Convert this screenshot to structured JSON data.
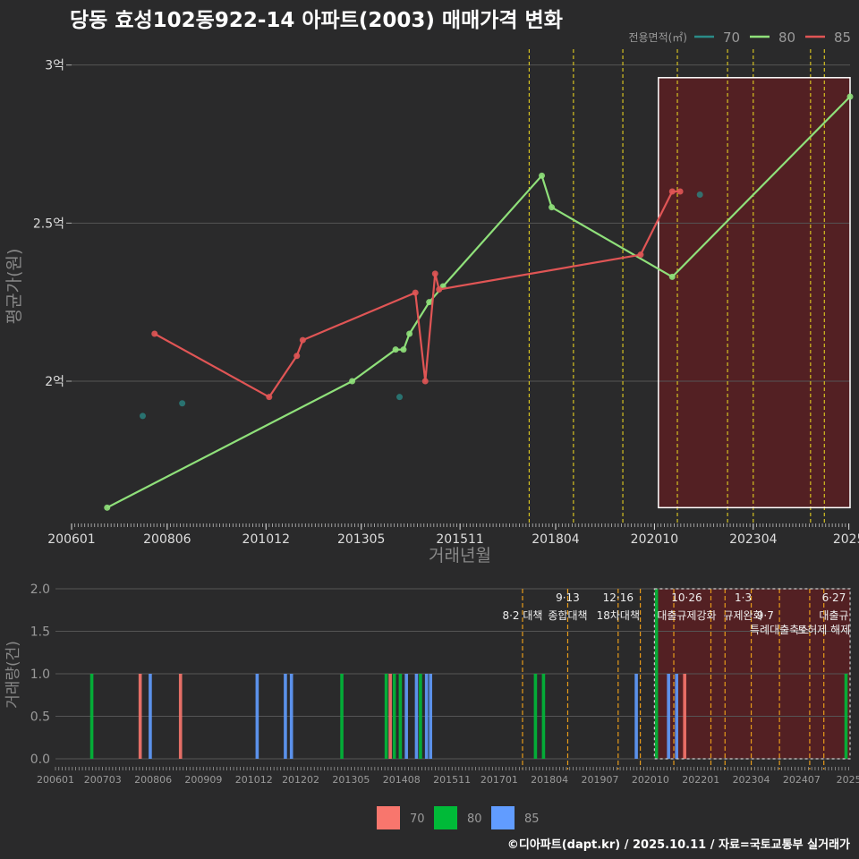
{
  "title": "당동 효성102동922-14 아파트(2003) 매매가격 변화",
  "footer": "©디아파트(dapt.kr) / 2025.10.11 / 자료=국토교통부 실거래가",
  "colors": {
    "s70": "#2a8b88",
    "s80": "#8fe07a",
    "s85": "#e05555",
    "b70": "#f8766d",
    "b80": "#00ba38",
    "b85": "#619cff",
    "grid": "#555555",
    "policy_top": "#d4c021",
    "policy_bot": "#e69a1a",
    "shade": "#5a1f22",
    "box": "#ffffff"
  },
  "chart_data": [
    {
      "type": "line",
      "title": "당동 효성102동922-14 아파트(2003) 매매가격 변화",
      "xlabel": "거래년월",
      "ylabel": "평균가(원)",
      "xlim": [
        2006.0,
        2025.7
      ],
      "ylim": [
        1.55,
        3.05
      ],
      "yticks": [
        {
          "v": 2.0,
          "label": "2억"
        },
        {
          "v": 2.5,
          "label": "2.5억"
        },
        {
          "v": 3.0,
          "label": "3억"
        }
      ],
      "xticks": [
        {
          "v": 2006.0,
          "label": "200601"
        },
        {
          "v": 2008.42,
          "label": "200806"
        },
        {
          "v": 2010.92,
          "label": "201012"
        },
        {
          "v": 2013.33,
          "label": "201305"
        },
        {
          "v": 2015.83,
          "label": "201511"
        },
        {
          "v": 2018.25,
          "label": "201804"
        },
        {
          "v": 2020.75,
          "label": "202010"
        },
        {
          "v": 2023.25,
          "label": "202304"
        },
        {
          "v": 2025.67,
          "label": "2025"
        }
      ],
      "legend_title": "전용면적(㎡)",
      "legend_position": "top-right",
      "series": [
        {
          "name": "70",
          "color_key": "s70",
          "line": false,
          "points": [
            [
              2007.8,
              1.89
            ],
            [
              2008.8,
              1.93
            ],
            [
              2014.3,
              1.95
            ],
            [
              2021.9,
              2.59
            ]
          ]
        },
        {
          "name": "80",
          "color_key": "s80",
          "line": true,
          "points": [
            [
              2006.9,
              1.6
            ],
            [
              2013.1,
              2.0
            ],
            [
              2014.2,
              2.1
            ],
            [
              2014.4,
              2.1
            ],
            [
              2014.55,
              2.15
            ],
            [
              2015.05,
              2.25
            ],
            [
              2015.4,
              2.3
            ],
            [
              2017.9,
              2.65
            ],
            [
              2018.15,
              2.55
            ],
            [
              2021.2,
              2.33
            ],
            [
              2025.7,
              2.9
            ]
          ]
        },
        {
          "name": "85",
          "color_key": "s85",
          "line": true,
          "points": [
            [
              2008.1,
              2.15
            ],
            [
              2011.0,
              1.95
            ],
            [
              2011.7,
              2.08
            ],
            [
              2011.85,
              2.13
            ],
            [
              2014.7,
              2.28
            ],
            [
              2014.95,
              2.0
            ],
            [
              2015.2,
              2.34
            ],
            [
              2015.3,
              2.29
            ],
            [
              2020.4,
              2.4
            ],
            [
              2021.2,
              2.6
            ],
            [
              2021.4,
              2.6
            ]
          ]
        }
      ],
      "policy_lines": [
        2017.58,
        2018.7,
        2019.95,
        2021.33,
        2022.6,
        2023.25,
        2024.7,
        2025.05
      ],
      "highlight_range": [
        2020.85,
        2025.7
      ]
    },
    {
      "type": "bar",
      "ylabel": "거래량(건)",
      "xlim": [
        2006.0,
        2025.7
      ],
      "ylim": [
        0,
        2.0
      ],
      "yticks": [
        {
          "v": 0,
          "label": "0.0"
        },
        {
          "v": 0.5,
          "label": "0.5"
        },
        {
          "v": 1.0,
          "label": "1.0"
        },
        {
          "v": 1.5,
          "label": "1.5"
        },
        {
          "v": 2.0,
          "label": "2.0"
        }
      ],
      "xticks": [
        {
          "v": 2006.0,
          "label": "200601"
        },
        {
          "v": 2007.17,
          "label": "200703"
        },
        {
          "v": 2008.42,
          "label": "200806"
        },
        {
          "v": 2009.67,
          "label": "200909"
        },
        {
          "v": 2010.92,
          "label": "201012"
        },
        {
          "v": 2012.08,
          "label": "201202"
        },
        {
          "v": 2013.33,
          "label": "201305"
        },
        {
          "v": 2014.58,
          "label": "201408"
        },
        {
          "v": 2015.83,
          "label": "201511"
        },
        {
          "v": 2017.0,
          "label": "201701"
        },
        {
          "v": 2018.25,
          "label": "201804"
        },
        {
          "v": 2019.5,
          "label": "201907"
        },
        {
          "v": 2020.75,
          "label": "202010"
        },
        {
          "v": 2022.0,
          "label": "202201"
        },
        {
          "v": 2023.25,
          "label": "202304"
        },
        {
          "v": 2024.5,
          "label": "202407"
        },
        {
          "v": 2025.67,
          "label": "2025"
        }
      ],
      "legend": [
        {
          "name": "70",
          "color_key": "b70"
        },
        {
          "name": "80",
          "color_key": "b80"
        },
        {
          "name": "85",
          "color_key": "b85"
        }
      ],
      "bars": [
        {
          "x": 2006.9,
          "v": 1,
          "s": "80"
        },
        {
          "x": 2008.1,
          "v": 1,
          "s": "70"
        },
        {
          "x": 2008.35,
          "v": 1,
          "s": "85"
        },
        {
          "x": 2009.1,
          "v": 1,
          "s": "70"
        },
        {
          "x": 2011.0,
          "v": 1,
          "s": "85"
        },
        {
          "x": 2011.7,
          "v": 1,
          "s": "85"
        },
        {
          "x": 2011.85,
          "v": 1,
          "s": "85"
        },
        {
          "x": 2013.1,
          "v": 1,
          "s": "80"
        },
        {
          "x": 2014.2,
          "v": 1,
          "s": "80"
        },
        {
          "x": 2014.3,
          "v": 1,
          "s": "70"
        },
        {
          "x": 2014.4,
          "v": 1,
          "s": "80"
        },
        {
          "x": 2014.55,
          "v": 1,
          "s": "80"
        },
        {
          "x": 2014.7,
          "v": 1,
          "s": "85"
        },
        {
          "x": 2014.95,
          "v": 1,
          "s": "85"
        },
        {
          "x": 2015.05,
          "v": 1,
          "s": "80"
        },
        {
          "x": 2015.2,
          "v": 1,
          "s": "85"
        },
        {
          "x": 2015.3,
          "v": 1,
          "s": "85"
        },
        {
          "x": 2017.9,
          "v": 1,
          "s": "80"
        },
        {
          "x": 2018.1,
          "v": 1,
          "s": "80"
        },
        {
          "x": 2020.4,
          "v": 1,
          "s": "85"
        },
        {
          "x": 2020.9,
          "v": 2,
          "s": "80"
        },
        {
          "x": 2021.2,
          "v": 1,
          "s": "85"
        },
        {
          "x": 2021.4,
          "v": 1,
          "s": "85"
        },
        {
          "x": 2021.6,
          "v": 1,
          "s": "70"
        },
        {
          "x": 2025.6,
          "v": 1,
          "s": "80"
        }
      ],
      "policy_lines": [
        2017.58,
        2018.7,
        2019.95,
        2020.5,
        2021.33,
        2022.25,
        2022.6,
        2023.25,
        2023.95,
        2024.7,
        2025.05
      ],
      "highlight_range": [
        2020.85,
        2025.7
      ],
      "annotations": [
        {
          "x": 2017.58,
          "row": 1,
          "text": "8·2 대책"
        },
        {
          "x": 2018.7,
          "row": 0,
          "text": "9·13"
        },
        {
          "x": 2018.7,
          "row": 1,
          "text": "종합대책"
        },
        {
          "x": 2019.95,
          "row": 0,
          "text": "12·16"
        },
        {
          "x": 2019.95,
          "row": 1,
          "text": "18차대책"
        },
        {
          "x": 2021.65,
          "row": 0,
          "text": "10·26"
        },
        {
          "x": 2021.65,
          "row": 1,
          "text": "대출규제강화"
        },
        {
          "x": 2023.05,
          "row": 0,
          "text": "1·3"
        },
        {
          "x": 2023.05,
          "row": 1,
          "text": "규제완화"
        },
        {
          "x": 2023.6,
          "row": 1,
          "text": "9·7"
        },
        {
          "x": 2023.95,
          "row": 2,
          "text": "특례대출축소"
        },
        {
          "x": 2025.05,
          "row": 2,
          "text": "토허제 해제"
        },
        {
          "x": 2025.3,
          "row": 0,
          "text": "6·27"
        },
        {
          "x": 2025.3,
          "row": 1,
          "text": "대출규"
        }
      ]
    }
  ]
}
